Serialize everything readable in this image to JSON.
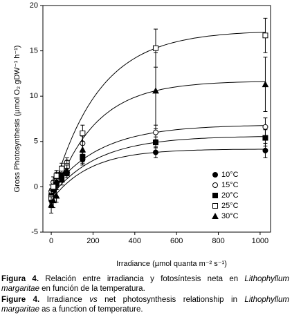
{
  "chart_data": {
    "type": "scatter",
    "xlabel": "Irradiance (µmol quanta m⁻² s⁻¹)",
    "ylabel": "Gross Photosynthesis (µmol O₂ gDW⁻¹ h⁻¹)",
    "x": [
      0,
      10,
      25,
      50,
      75,
      150,
      500,
      1025
    ],
    "series": [
      {
        "name": "10°C",
        "color": "#000000",
        "marker": "circle",
        "filled": true,
        "values": [
          -1.5,
          -0.5,
          0.5,
          1.5,
          2.2,
          3.0,
          3.8,
          4.0
        ],
        "errors": [
          0.8,
          0.6,
          0.6,
          0.5,
          0.5,
          0.6,
          0.6,
          0.8
        ]
      },
      {
        "name": "15°C",
        "color": "#000000",
        "marker": "circle",
        "filled": false,
        "values": [
          -0.5,
          0.5,
          1.0,
          1.8,
          2.7,
          4.8,
          6.0,
          6.6
        ],
        "errors": [
          0.7,
          0.6,
          0.6,
          0.5,
          0.5,
          0.8,
          0.8,
          1.0
        ]
      },
      {
        "name": "20°C",
        "color": "#000000",
        "marker": "square",
        "filled": true,
        "values": [
          -1.0,
          -0.3,
          0.3,
          1.0,
          1.5,
          3.3,
          4.9,
          5.4
        ],
        "errors": [
          0.8,
          0.6,
          0.6,
          0.5,
          0.5,
          0.5,
          0.6,
          0.9
        ]
      },
      {
        "name": "25°C",
        "color": "#000000",
        "marker": "square",
        "filled": false,
        "values": [
          -1.2,
          0.0,
          1.2,
          2.0,
          2.3,
          5.9,
          15.3,
          16.7
        ],
        "errors": [
          0.8,
          0.7,
          0.6,
          0.6,
          0.6,
          0.9,
          2.1,
          1.9
        ]
      },
      {
        "name": "30°C",
        "color": "#000000",
        "marker": "triangle",
        "filled": true,
        "values": [
          -2.0,
          -1.5,
          -1.0,
          0.8,
          1.8,
          4.1,
          10.6,
          11.3
        ],
        "errors": [
          0.9,
          0.8,
          0.7,
          0.6,
          0.6,
          1.5,
          4.2,
          3.0
        ]
      }
    ],
    "xlim": [
      -40,
      1050
    ],
    "xticks": [
      0,
      200,
      400,
      600,
      800,
      1000
    ],
    "ylim": [
      -5,
      20
    ],
    "yticks": [
      -5,
      0,
      5,
      10,
      15,
      20
    ],
    "legend": "lower right",
    "grid": false
  },
  "caption": [
    [
      {
        "text": "Figura 4.",
        "style": "bold"
      },
      {
        "text": " Relación entre irradiancia y fotosíntesis neta en ",
        "style": "normal"
      },
      {
        "text": "Lithophyllum margaritae",
        "style": "italic"
      },
      {
        "text": " en función de la temperatura.",
        "style": "normal"
      }
    ],
    [
      {
        "text": "Figure 4.",
        "style": "bold"
      },
      {
        "text": " Irradiance ",
        "style": "normal"
      },
      {
        "text": "vs",
        "style": "italic"
      },
      {
        "text": " net photosynthesis relationship in ",
        "style": "normal"
      },
      {
        "text": "Lithophyllum margaritae",
        "style": "italic"
      },
      {
        "text": " as a function of temperature.",
        "style": "normal"
      }
    ]
  ]
}
